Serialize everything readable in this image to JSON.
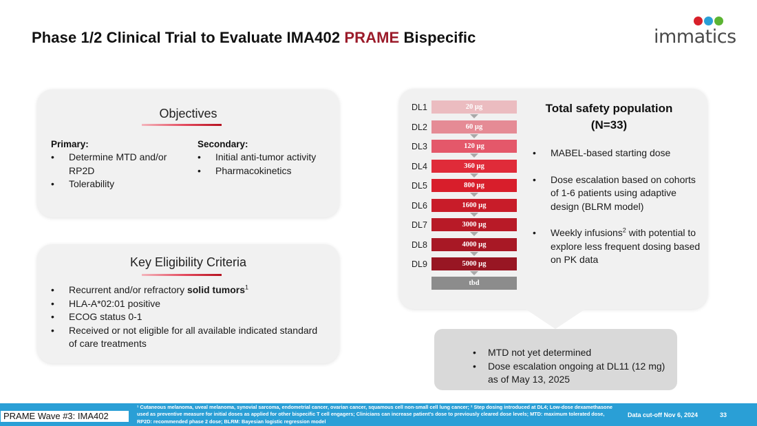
{
  "title": {
    "prefix": "Phase 1/2 Clinical Trial to Evaluate IMA402 ",
    "accent": "PRAME",
    "suffix": " Bispecific"
  },
  "logo": {
    "text": "immatics",
    "dot_colors": [
      "#d8202a",
      "#2a9fd6",
      "#5bb432"
    ]
  },
  "objectives": {
    "heading": "Objectives",
    "primary_label": "Primary:",
    "primary_items": [
      "Determine MTD and/or RP2D",
      "Tolerability"
    ],
    "secondary_label": "Secondary:",
    "secondary_items": [
      "Initial anti-tumor activity",
      "Pharmacokinetics"
    ]
  },
  "eligibility": {
    "heading": "Key Eligibility Criteria",
    "item1_prefix": "Recurrent and/or refractory ",
    "item1_bold": "solid tumors",
    "item1_sup": "1",
    "items": [
      "HLA-A*02:01 positive",
      "ECOG status 0-1",
      "Received or not eligible for all available indicated standard of care treatments"
    ]
  },
  "dose_levels": [
    {
      "label": "DL1",
      "dose": "20 µg",
      "color": "#ebbcc0"
    },
    {
      "label": "DL2",
      "dose": "60 µg",
      "color": "#e58b95"
    },
    {
      "label": "DL3",
      "dose": "120 µg",
      "color": "#e4586a"
    },
    {
      "label": "DL4",
      "dose": "360 µg",
      "color": "#e02b39"
    },
    {
      "label": "DL5",
      "dose": "800 µg",
      "color": "#d81e2b"
    },
    {
      "label": "DL6",
      "dose": "1600 µg",
      "color": "#c81c29"
    },
    {
      "label": "DL7",
      "dose": "3000 µg",
      "color": "#b81a27"
    },
    {
      "label": "DL8",
      "dose": "4000 µg",
      "color": "#a81825"
    },
    {
      "label": "DL9",
      "dose": "5000 µg",
      "color": "#981623"
    }
  ],
  "dose_tbd": {
    "dose": "tbd",
    "color": "#8c8c8c"
  },
  "safety": {
    "title_line1": "Total safety population",
    "title_line2": "(N=33)",
    "bullet1": "MABEL-based starting dose",
    "bullet2": "Dose escalation based on cohorts of 1-6 patients using adaptive design (BLRM model)",
    "bullet3_prefix": "Weekly infusions",
    "bullet3_sup": "2",
    "bullet3_suffix": " with potential to explore less frequent dosing based on PK data"
  },
  "notes": [
    "MTD not yet determined",
    "Dose escalation ongoing at DL11 (12 mg) as of May 13, 2025"
  ],
  "footer": {
    "tag": "PRAME Wave #3: IMA402",
    "footnote": "¹ Cutaneous melanoma, uveal melanoma, synovial sarcoma, endometrial cancer, ovarian cancer, squamous cell non-small cell lung cancer; ² Step dosing introduced at DL4; Low-dose dexamethasone used as preventive measure for initial doses as applied for other bispecific T cell engagers; Clinicians can increase patient's dose to previously cleared dose levels; MTD: maximum tolerated dose, RP2D: recommended phase 2 dose; BLRM: Bayesian logistic regression model",
    "cutoff": "Data cut-off Nov 6, 2024",
    "page": "33"
  }
}
